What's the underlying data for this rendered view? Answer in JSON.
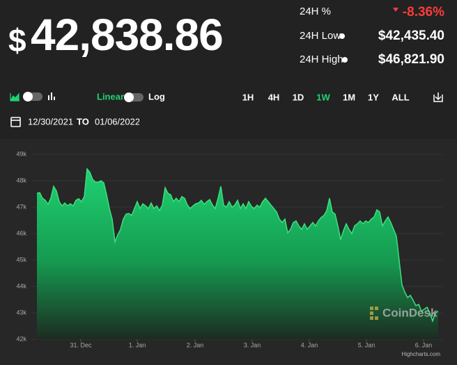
{
  "header": {
    "currency": "$",
    "price": "42,838.86"
  },
  "stats": [
    {
      "label": "24H %",
      "value": "-8.36%"
    },
    {
      "label": "24H Low",
      "value": "$42,435.40"
    },
    {
      "label": "24H High",
      "value": "$46,821.90"
    }
  ],
  "controls": {
    "scales": [
      "Linear",
      "Log"
    ],
    "ranges": [
      "1H",
      "4H",
      "1D",
      "1W",
      "1M",
      "1Y",
      "ALL"
    ],
    "active_range": 3
  },
  "date_range": {
    "from": "12/30/2021",
    "to_label": "TO",
    "to": "01/06/2022"
  },
  "chart_data": {
    "type": "area",
    "color": "#3ee07e",
    "values": [
      47530,
      47550,
      47340,
      47260,
      47110,
      47340,
      47790,
      47610,
      47210,
      47050,
      47160,
      47050,
      47130,
      47050,
      47260,
      47320,
      47210,
      47400,
      48450,
      48320,
      48050,
      47950,
      47950,
      48000,
      47920,
      47470,
      46950,
      46550,
      45690,
      45950,
      46160,
      46550,
      46740,
      46760,
      46690,
      46950,
      47210,
      46950,
      47130,
      47050,
      46950,
      47160,
      46950,
      47050,
      46870,
      47080,
      47740,
      47530,
      47470,
      47210,
      47340,
      47210,
      47400,
      47340,
      47080,
      46950,
      47050,
      47130,
      47160,
      47260,
      47110,
      47210,
      47290,
      47080,
      46950,
      47340,
      47790,
      47080,
      47000,
      47210,
      47000,
      47080,
      47260,
      46950,
      47130,
      46950,
      47210,
      47030,
      46950,
      47080,
      47000,
      47210,
      47340,
      47210,
      47080,
      46950,
      46820,
      46550,
      46420,
      46550,
      46030,
      46160,
      46420,
      46480,
      46290,
      46160,
      46370,
      46160,
      46290,
      46420,
      46290,
      46480,
      46610,
      46690,
      46870,
      47340,
      46820,
      46740,
      46290,
      45770,
      46110,
      46370,
      46160,
      46000,
      46290,
      46370,
      46480,
      46370,
      46480,
      46420,
      46550,
      46630,
      46900,
      46820,
      46290,
      46480,
      46630,
      46420,
      46160,
      45900,
      44980,
      44060,
      43790,
      43580,
      43660,
      43480,
      43270,
      43320,
      43060,
      43140,
      43210,
      43000,
      42690,
      43000,
      43060
    ],
    "ylim": [
      42000,
      49000
    ],
    "yticks": [
      {
        "value": 42000,
        "label": "42k"
      },
      {
        "value": 43000,
        "label": "43k"
      },
      {
        "value": 44000,
        "label": "44k"
      },
      {
        "value": 45000,
        "label": "45k"
      },
      {
        "value": 46000,
        "label": "46k"
      },
      {
        "value": 47000,
        "label": "47k"
      },
      {
        "value": 48000,
        "label": "48k"
      },
      {
        "value": 49000,
        "label": "49k"
      }
    ],
    "xticks": [
      {
        "value": 15.75,
        "label": "31. Dec"
      },
      {
        "value": 36,
        "label": "1. Jan"
      },
      {
        "value": 56.75,
        "label": "2. Jan"
      },
      {
        "value": 77.25,
        "label": "3. Jan"
      },
      {
        "value": 97.75,
        "label": "4. Jan"
      },
      {
        "value": 118.25,
        "label": "5. Jan"
      },
      {
        "value": 138.75,
        "label": "6. Jan"
      }
    ],
    "grid": true,
    "watermark": "CoinDesk",
    "credits": "Highcharts.com"
  }
}
